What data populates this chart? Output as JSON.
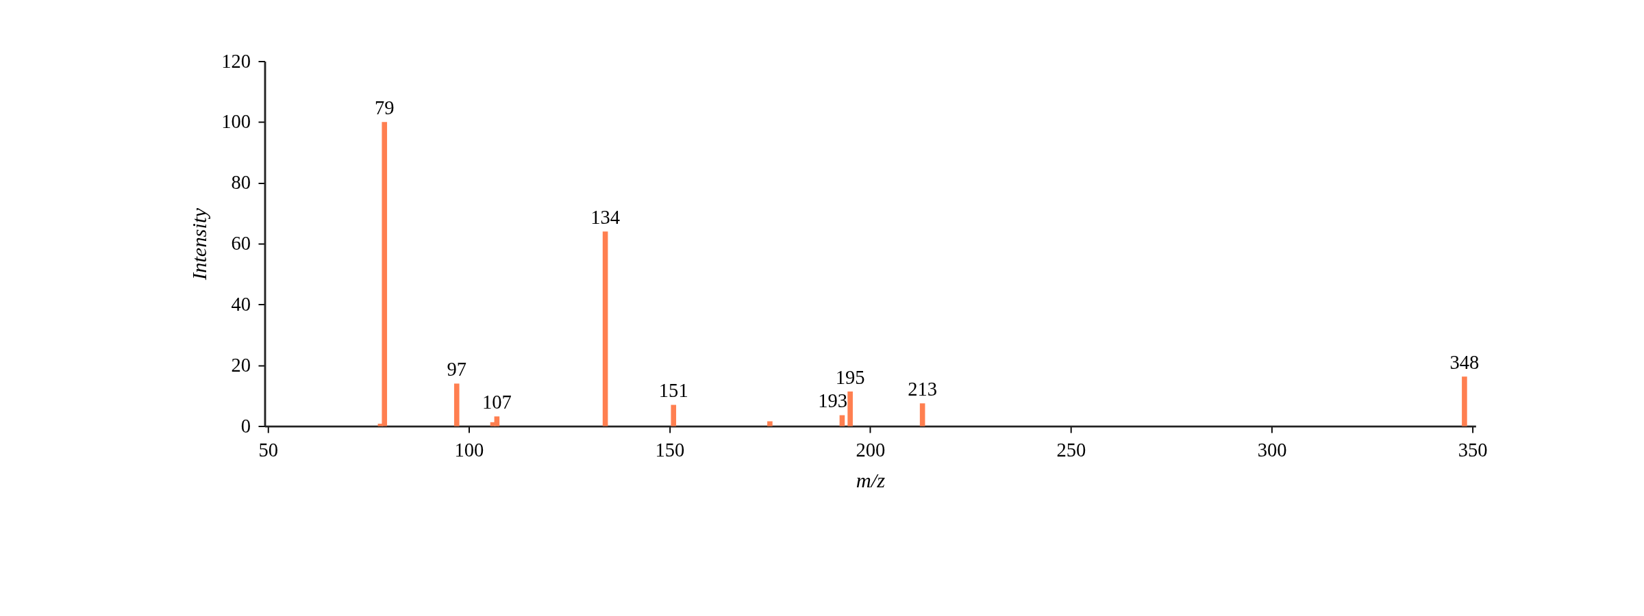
{
  "chart_data": {
    "type": "bar",
    "xlabel": "m/z",
    "ylabel": "Intensity",
    "x": [
      78,
      79,
      97,
      106,
      107,
      134,
      151,
      175,
      193,
      195,
      213,
      348
    ],
    "series": [
      {
        "color": "#ff7f50",
        "values": [
          0.8,
          100,
          14,
          1.3,
          3.2,
          64,
          7,
          1.6,
          3.6,
          11.4,
          7.5,
          16.3
        ]
      }
    ],
    "annotations": [
      {
        "text": "79",
        "x": 79,
        "y": 100
      },
      {
        "text": "97",
        "x": 97,
        "y": 14
      },
      {
        "text": "107",
        "x": 107,
        "y": 3.2
      },
      {
        "text": "134",
        "x": 134,
        "y": 64
      },
      {
        "text": "151",
        "x": 151,
        "y": 7
      },
      {
        "text": "193",
        "x": 193,
        "y": 3.6
      },
      {
        "text": "195",
        "x": 195,
        "y": 11.4
      },
      {
        "text": "213",
        "x": 213,
        "y": 7.5
      },
      {
        "text": "348",
        "x": 348,
        "y": 16.3
      }
    ],
    "xlim": [
      50,
      350
    ],
    "xticks": [
      50,
      100,
      150,
      200,
      250,
      300,
      350
    ],
    "ylim": [
      0,
      120
    ],
    "yticks": [
      0,
      20,
      40,
      60,
      80,
      100,
      120
    ],
    "grid": false
  }
}
